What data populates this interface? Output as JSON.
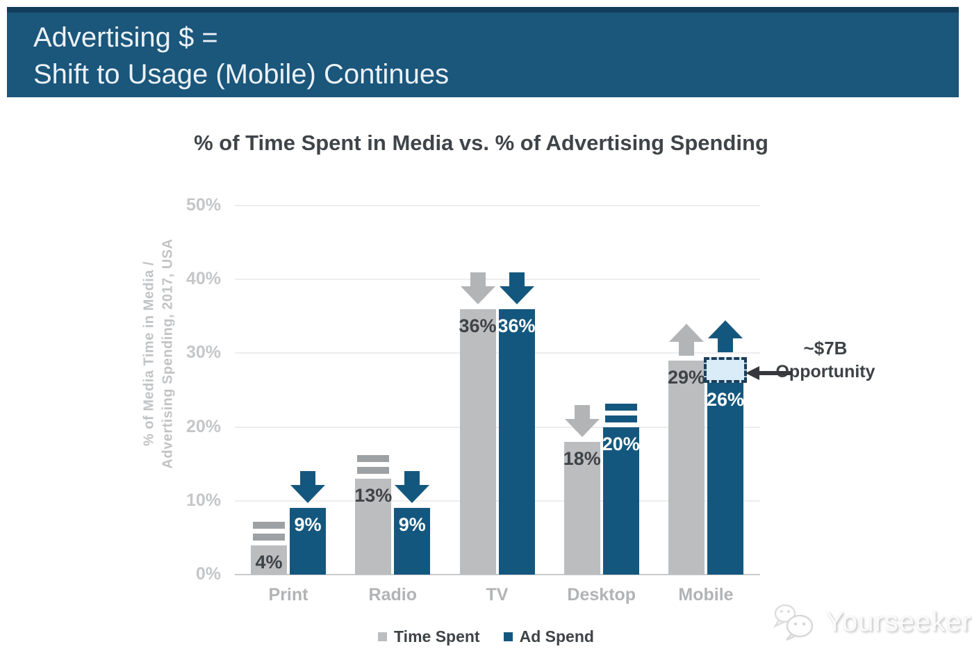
{
  "slide": {
    "banner": {
      "line1": "Advertising $ =",
      "line2": "Shift to Usage (Mobile) Continues",
      "bg_color": "#1b567b"
    }
  },
  "chart_data": {
    "type": "bar",
    "title": "% of Time Spent in Media vs. % of Advertising Spending",
    "ylabel": [
      "% of Media Time in Media /",
      "Advertising Spending, 2017, USA"
    ],
    "categories": [
      "Print",
      "Radio",
      "TV",
      "Desktop",
      "Mobile"
    ],
    "series": [
      {
        "name": "Time Spent",
        "color": "#bcbdbe",
        "values": [
          4,
          13,
          36,
          18,
          29
        ],
        "labels": [
          "4%",
          "13%",
          "36%",
          "18%",
          "29%"
        ],
        "trend_markers": [
          "equal",
          "equal",
          "down",
          "down",
          "up"
        ]
      },
      {
        "name": "Ad Spend",
        "color": "#14577e",
        "values": [
          9,
          9,
          36,
          20,
          26
        ],
        "labels": [
          "9%",
          "9%",
          "36%",
          "20%",
          "26%"
        ],
        "trend_markers": [
          "down",
          "down",
          "down",
          "equal",
          "up"
        ]
      }
    ],
    "y_ticks": [
      "0%",
      "10%",
      "20%",
      "30%",
      "40%",
      "50%"
    ],
    "ylim": [
      0,
      50
    ],
    "grid": true,
    "legend_position": "bottom",
    "annotation": {
      "line1": "~$7B",
      "line2": "Opportunity"
    },
    "opportunity_box": {
      "category": "Mobile",
      "series": "Ad Spend",
      "from_value": 26,
      "to_value": 29
    }
  },
  "legend": {
    "items": [
      {
        "label": "Time Spent",
        "color": "#bcbdbe"
      },
      {
        "label": "Ad Spend",
        "color": "#14577e"
      }
    ]
  },
  "watermark": {
    "text": "Yourseeker",
    "logo": "wechat-icon"
  }
}
